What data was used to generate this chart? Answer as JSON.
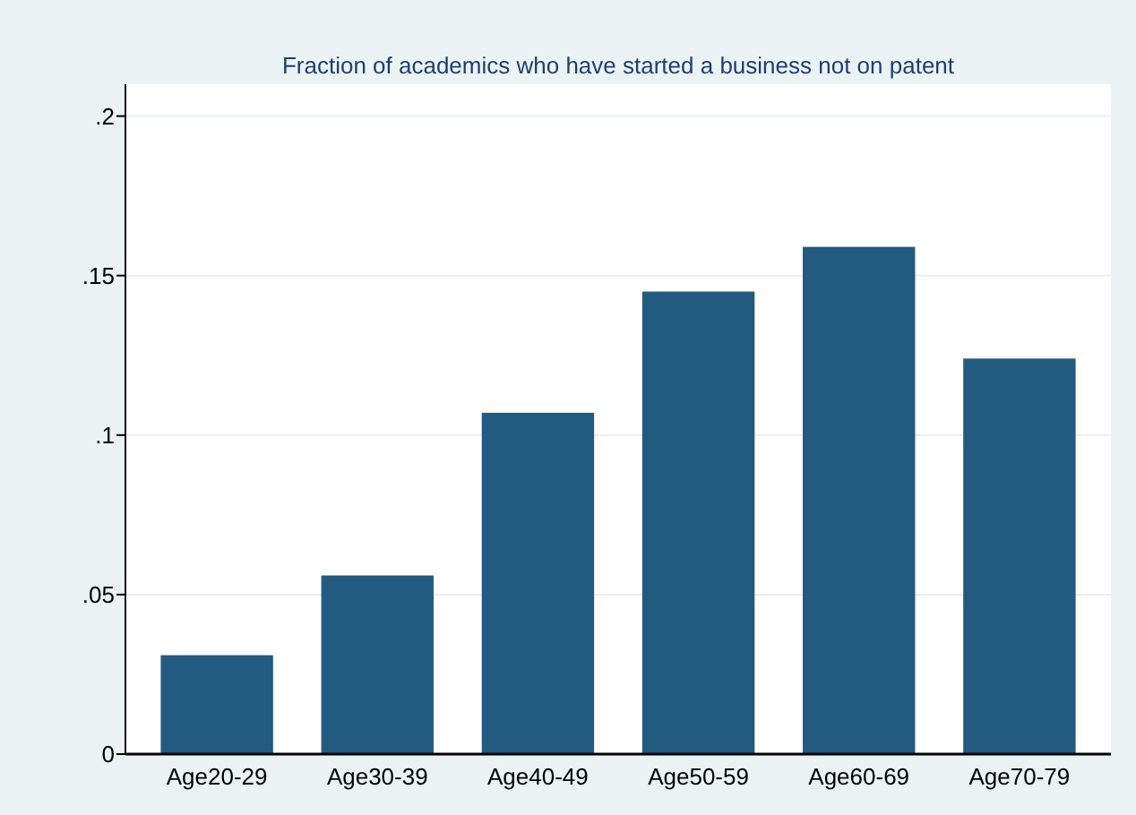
{
  "chart_data": {
    "type": "bar",
    "title": "Fraction of academics who have started a business not on patent",
    "categories": [
      "Age20-29",
      "Age30-39",
      "Age40-49",
      "Age50-59",
      "Age60-69",
      "Age70-79"
    ],
    "values": [
      0.031,
      0.056,
      0.107,
      0.145,
      0.159,
      0.124
    ],
    "color": "#225a80",
    "ylim": [
      0,
      0.21
    ],
    "yticks": [
      {
        "value": 0,
        "label": "0"
      },
      {
        "value": 0.05,
        "label": ".05"
      },
      {
        "value": 0.1,
        "label": ".1"
      },
      {
        "value": 0.15,
        "label": ".15"
      },
      {
        "value": 0.2,
        "label": ".2"
      }
    ],
    "grid": "y"
  }
}
